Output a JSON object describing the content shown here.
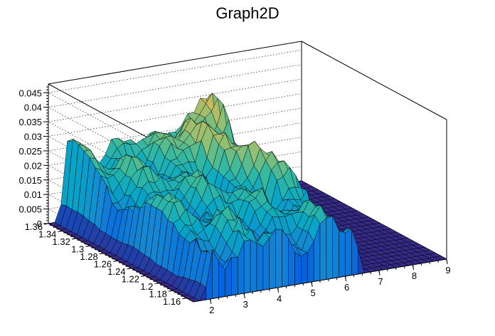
{
  "chart_data": {
    "type": "surface",
    "title": "Graph2D",
    "x_label": "",
    "y_label": "",
    "z_label": "",
    "x_range": [
      1.5,
      9
    ],
    "y_range": [
      1.15,
      1.36
    ],
    "z_range": [
      0,
      0.048
    ],
    "x_ticks": [
      "2",
      "3",
      "4",
      "5",
      "6",
      "7",
      "8",
      "9"
    ],
    "y_ticks": [
      "1.16",
      "1.18",
      "1.2",
      "1.22",
      "1.24",
      "1.26",
      "1.28",
      "1.3",
      "1.32",
      "1.34",
      "1.36"
    ],
    "z_ticks": [
      "0",
      "0.005",
      "0.01",
      "0.015",
      "0.02",
      "0.025",
      "0.03",
      "0.035",
      "0.04",
      "0.045"
    ],
    "grid": true,
    "colormap": "kBird",
    "colors": [
      "#352a87",
      "#0363e1",
      "#1485d4",
      "#06a7c6",
      "#38b99e",
      "#92bf73",
      "#d9ba56",
      "#fcce2e",
      "#f9fb0e"
    ],
    "surface_regions": {
      "nonzero_x_range": [
        1.85,
        6.45
      ],
      "left_spike": {
        "x": 1.92,
        "y": 1.33,
        "z": 0.025
      },
      "ridge_peaks": [
        {
          "x": 5.1,
          "y": 1.33,
          "z": 0.031
        },
        {
          "x": 6.25,
          "y": 1.35,
          "z": 0.03
        },
        {
          "x": 5.6,
          "y": 1.26,
          "z": 0.027
        }
      ],
      "typical_level_z": 0.016
    }
  }
}
